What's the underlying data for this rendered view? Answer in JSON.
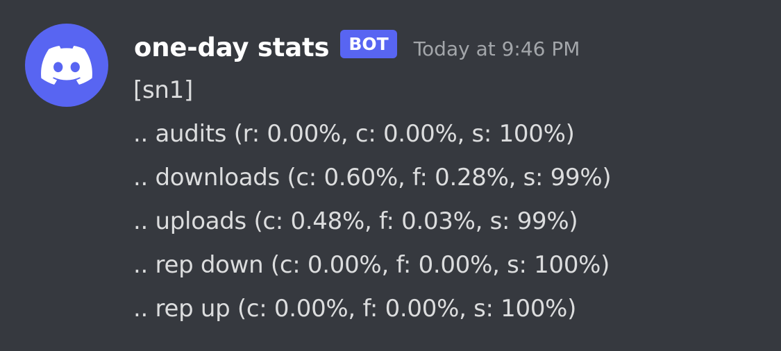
{
  "author": {
    "name": "one-day stats",
    "tag": "BOT",
    "avatar_icon": "discord-logo-icon",
    "avatar_color": "#5865f2"
  },
  "message": {
    "timestamp": "Today at 9:46 PM",
    "lines": [
      "[sn1]",
      ".. audits (r: 0.00%, c: 0.00%, s: 100%)",
      ".. downloads (c: 0.60%, f: 0.28%, s: 99%)",
      ".. uploads (c: 0.48%, f: 0.03%, s: 99%)",
      ".. rep down (c: 0.00%, f: 0.00%, s: 100%)",
      ".. rep up (c: 0.00%, f: 0.00%, s: 100%)"
    ]
  },
  "theme": {
    "background": "#36393f",
    "accent": "#5865f2"
  }
}
